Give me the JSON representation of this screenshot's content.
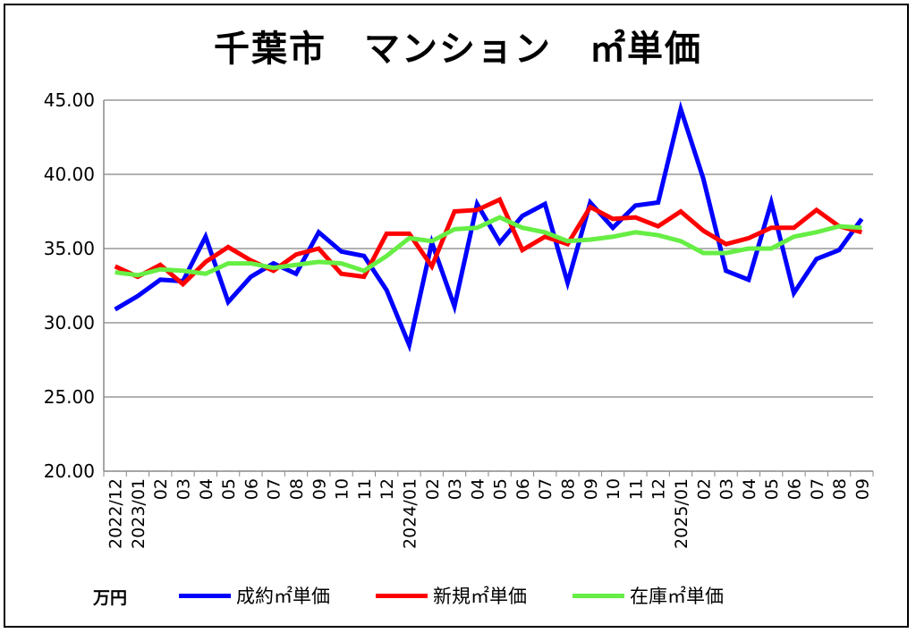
{
  "chart_data": {
    "type": "line",
    "title": "千葉市　マンション　㎡単価",
    "ylabel": "万円",
    "xlabel": "",
    "ylim": [
      20,
      45
    ],
    "yticks": [
      "45.00",
      "40.00",
      "35.00",
      "30.00",
      "25.00",
      "20.00"
    ],
    "ytick_values": [
      45,
      40,
      35,
      30,
      25,
      20
    ],
    "grid": true,
    "legend_position": "bottom",
    "x": [
      "2022/12",
      "2023/01",
      "02",
      "03",
      "04",
      "05",
      "06",
      "07",
      "08",
      "09",
      "10",
      "11",
      "12",
      "2024/01",
      "02",
      "03",
      "04",
      "05",
      "06",
      "07",
      "08",
      "09",
      "10",
      "11",
      "12",
      "2025/01",
      "02",
      "03",
      "04",
      "05",
      "06",
      "07",
      "08",
      "09"
    ],
    "series": [
      {
        "name": "成約㎡単価",
        "color": "#0000ff",
        "values": [
          30.9,
          31.8,
          32.9,
          32.8,
          35.8,
          31.4,
          33.1,
          34.0,
          33.3,
          36.1,
          34.8,
          34.5,
          32.2,
          28.5,
          35.4,
          31.1,
          38.0,
          35.4,
          37.2,
          38.0,
          32.7,
          38.1,
          36.4,
          37.9,
          38.1,
          44.4,
          39.7,
          33.5,
          32.9,
          38.1,
          32.0,
          34.3,
          34.9,
          37.0
        ]
      },
      {
        "name": "新規㎡単価",
        "color": "#ff0000",
        "values": [
          33.8,
          33.1,
          33.9,
          32.6,
          34.1,
          35.1,
          34.2,
          33.5,
          34.6,
          35.0,
          33.3,
          33.1,
          36.0,
          36.0,
          33.8,
          37.5,
          37.6,
          38.3,
          34.9,
          35.8,
          35.3,
          37.8,
          37.0,
          37.1,
          36.5,
          37.5,
          36.2,
          35.3,
          35.7,
          36.4,
          36.4,
          37.6,
          36.5,
          36.1
        ]
      },
      {
        "name": "在庫㎡単価",
        "color": "#66ee44",
        "values": [
          33.4,
          33.2,
          33.6,
          33.5,
          33.3,
          34.0,
          34.0,
          33.7,
          33.9,
          34.1,
          34.0,
          33.5,
          34.5,
          35.7,
          35.5,
          36.3,
          36.4,
          37.1,
          36.4,
          36.1,
          35.5,
          35.6,
          35.8,
          36.1,
          35.9,
          35.5,
          34.7,
          34.7,
          35.0,
          35.0,
          35.8,
          36.1,
          36.5,
          36.4
        ]
      }
    ]
  }
}
